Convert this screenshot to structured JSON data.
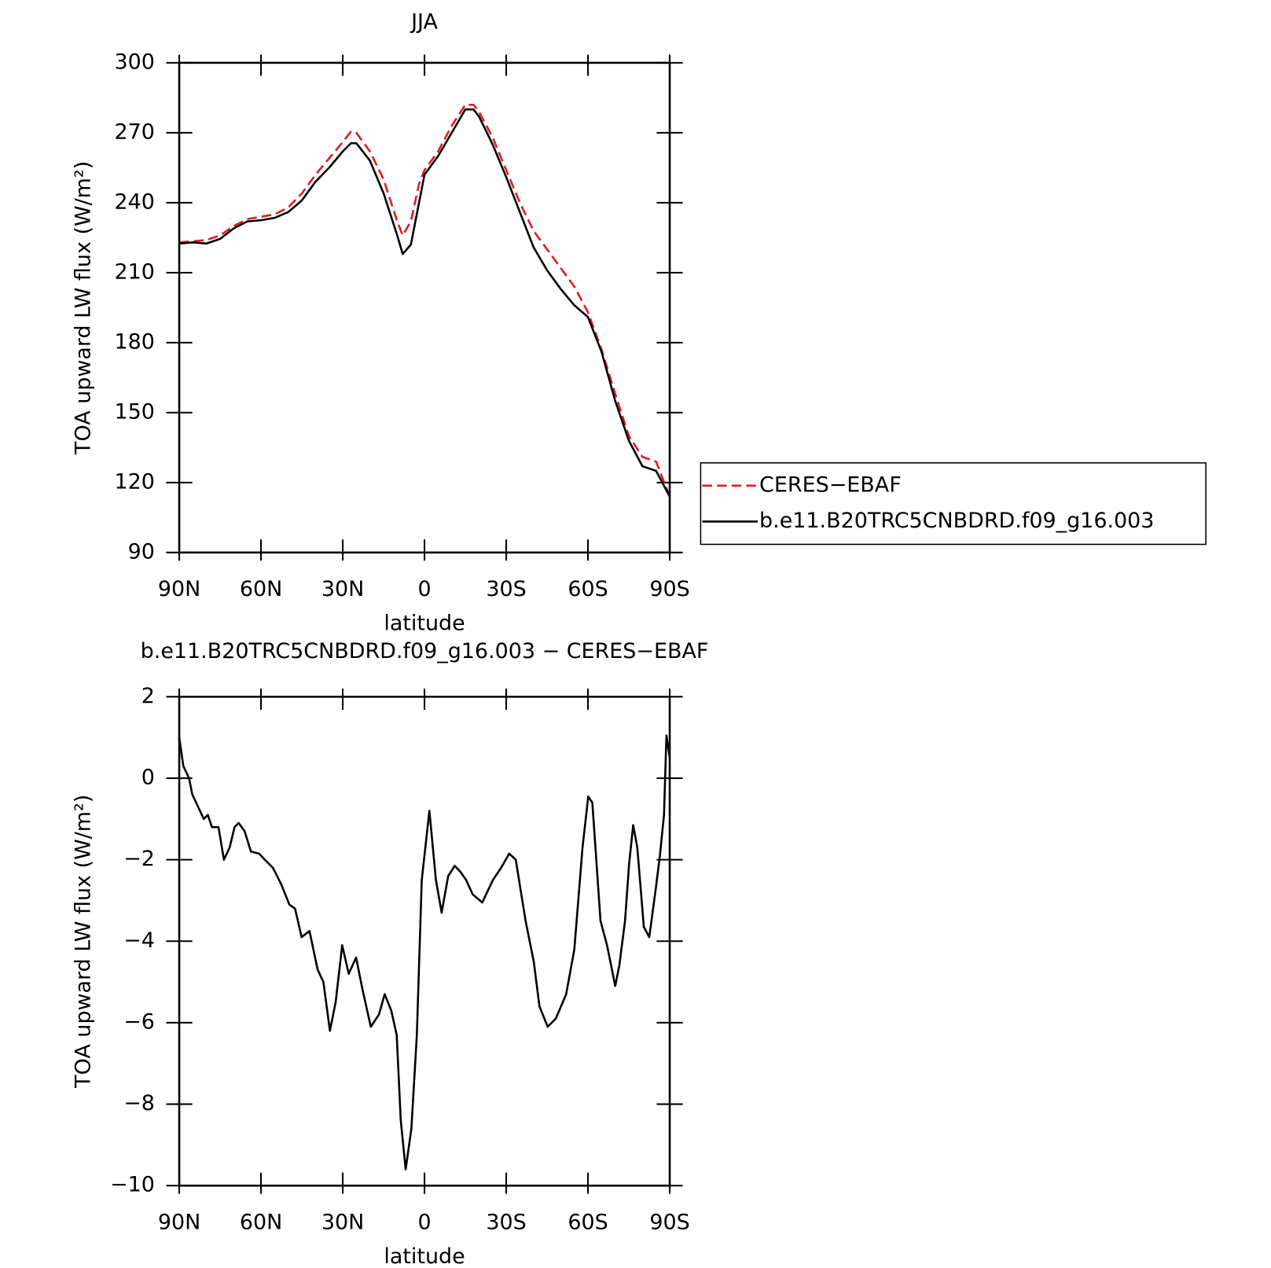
{
  "chart_data": [
    {
      "type": "line",
      "title": "JJA",
      "xlabel": "latitude",
      "ylabel": "TOA upward LW flux (W/m²)",
      "xlim": [
        90,
        -90
      ],
      "xticks": [
        {
          "value": 90,
          "label": "90N"
        },
        {
          "value": 60,
          "label": "60N"
        },
        {
          "value": 30,
          "label": "30N"
        },
        0,
        {
          "value": -30,
          "label": "30S"
        },
        {
          "value": -60,
          "label": "60S"
        },
        {
          "value": -90,
          "label": "90S"
        }
      ],
      "ylim": [
        90,
        300
      ],
      "yticks": [
        90,
        120,
        150,
        180,
        210,
        240,
        270,
        300
      ],
      "legend": "right",
      "x": [
        90,
        85,
        80,
        75,
        70,
        65,
        60,
        55,
        50,
        45,
        40,
        35,
        30,
        27,
        25,
        20,
        15,
        10,
        8,
        5,
        2,
        0,
        -5,
        -10,
        -15,
        -18,
        -20,
        -25,
        -30,
        -35,
        -40,
        -45,
        -50,
        -55,
        -60,
        -65,
        -70,
        -75,
        -80,
        -85,
        -90
      ],
      "series": [
        {
          "name": "CERES−EBAF",
          "color": "#e41a1c",
          "dash": "dashed",
          "values": [
            223,
            223.5,
            224,
            226,
            230,
            233,
            234,
            235,
            238,
            244,
            252,
            259,
            266,
            270.5,
            270,
            262,
            250,
            232,
            226,
            232,
            248,
            254,
            262,
            273,
            282,
            282,
            279,
            268,
            254,
            240,
            228,
            220,
            212,
            204,
            193,
            177,
            158,
            140,
            131,
            129,
            114
          ]
        },
        {
          "name": "b.e11.B20TRC5CNBDRD.f09_g16.003",
          "color": "#000000",
          "dash": "solid",
          "values": [
            222.5,
            223,
            222.5,
            224.5,
            229,
            232,
            232.5,
            233.5,
            236,
            241,
            249,
            255,
            262,
            265.5,
            265.5,
            258,
            244,
            226,
            218,
            222,
            240,
            252,
            260,
            270,
            280,
            280,
            277,
            265,
            251,
            236,
            221,
            211,
            203,
            196,
            191,
            176,
            155,
            138,
            127,
            125,
            114
          ]
        }
      ]
    },
    {
      "type": "line",
      "title": "b.e11.B20TRC5CNBDRD.f09_g16.003 − CERES−EBAF",
      "xlabel": "latitude",
      "ylabel": "TOA upward LW flux (W/m²)",
      "xlim": [
        90,
        -90
      ],
      "xticks": [
        {
          "value": 90,
          "label": "90N"
        },
        {
          "value": 60,
          "label": "60N"
        },
        {
          "value": 30,
          "label": "30N"
        },
        0,
        {
          "value": -30,
          "label": "30S"
        },
        {
          "value": -60,
          "label": "60S"
        },
        {
          "value": -90,
          "label": "90S"
        }
      ],
      "ylim": [
        -10,
        2
      ],
      "yticks": [
        {
          "value": -10,
          "label": "−10"
        },
        {
          "value": -8,
          "label": "−8"
        },
        {
          "value": -6,
          "label": "−6"
        },
        {
          "value": -4,
          "label": "−4"
        },
        {
          "value": -2,
          "label": "−2"
        },
        0,
        2
      ],
      "x": [
        90,
        88.5,
        86.4,
        85.2,
        83.1,
        81,
        79.5,
        78,
        75.6,
        73.6,
        71.5,
        69.7,
        68.2,
        66,
        63.7,
        60.7,
        58.6,
        55.6,
        52.6,
        49.6,
        47.5,
        45.1,
        42.2,
        39.2,
        37.1,
        34.7,
        32.6,
        30.2,
        27.8,
        25.1,
        22.7,
        19.7,
        16.7,
        14.6,
        12.2,
        10.2,
        8.7,
        6.9,
        4.8,
        2.8,
        1,
        -1.8,
        -4.2,
        -6.3,
        -8.7,
        -11.1,
        -13.2,
        -15.3,
        -17.7,
        -21.2,
        -25.1,
        -28.1,
        -31.1,
        -33.5,
        -37.1,
        -40.1,
        -42.2,
        -45.2,
        -48.2,
        -52,
        -55,
        -58,
        -60.1,
        -61.6,
        -64.6,
        -67,
        -70,
        -71.5,
        -73.6,
        -75.1,
        -76.6,
        -78.1,
        -80.5,
        -82.5,
        -84.9,
        -86.4,
        -87.9,
        -88.8,
        -90
      ],
      "series": [
        {
          "name": "b.e11.B20TRC5CNBDRD.f09_g16.003 − CERES−EBAF",
          "color": "#000000",
          "dash": "solid",
          "values": [
            1,
            0.3,
            0,
            -0.4,
            -0.7,
            -1,
            -0.9,
            -1.2,
            -1.2,
            -2,
            -1.7,
            -1.2,
            -1.1,
            -1.3,
            -1.8,
            -1.85,
            -2,
            -2.2,
            -2.6,
            -3.1,
            -3.2,
            -3.9,
            -3.75,
            -4.7,
            -5,
            -6.2,
            -5.5,
            -4.1,
            -4.8,
            -4.4,
            -5.2,
            -6.1,
            -5.8,
            -5.3,
            -5.7,
            -6.3,
            -8.4,
            -9.6,
            -8.6,
            -6.3,
            -2.5,
            -0.8,
            -2.5,
            -3.3,
            -2.4,
            -2.15,
            -2.3,
            -2.5,
            -2.85,
            -3.05,
            -2.5,
            -2.2,
            -1.85,
            -2,
            -3.5,
            -4.5,
            -5.6,
            -6.1,
            -5.9,
            -5.3,
            -4.2,
            -1.7,
            -0.45,
            -0.6,
            -3.5,
            -4.1,
            -5.1,
            -4.6,
            -3.5,
            -2.1,
            -1.15,
            -1.7,
            -3.65,
            -3.9,
            -2.7,
            -1.9,
            -0.9,
            1.05,
            0.5
          ]
        }
      ]
    }
  ]
}
